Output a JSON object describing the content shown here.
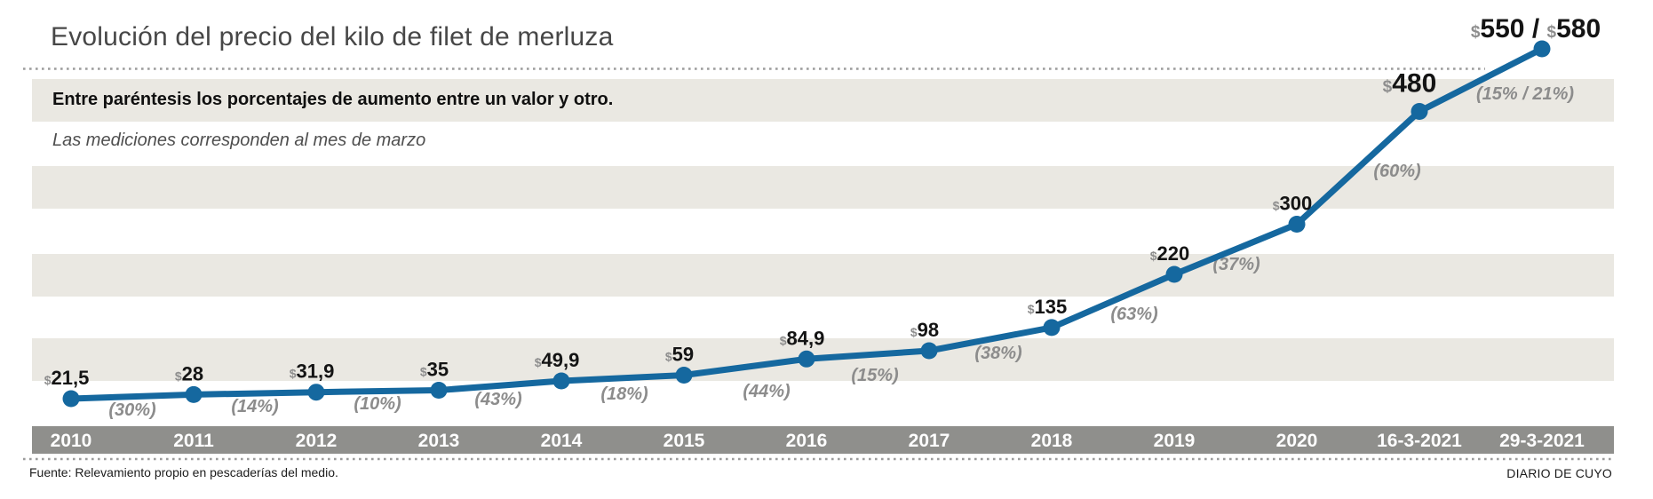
{
  "header": {
    "title": "Evolución del precio del kilo de filet de merluza",
    "note_bold": "Entre paréntesis los porcentajes de aumento entre un valor y otro.",
    "note_italic": "Las mediciones corresponden al mes de marzo"
  },
  "footer": {
    "source": "Fuente: Relevamiento propio en pescaderías del medio.",
    "brand": "DIARIO DE CUYO"
  },
  "chart_data": {
    "type": "line",
    "title": "Evolución del precio del kilo de filet de merluza",
    "notes": [
      "Entre paréntesis los porcentajes de aumento entre un valor y otro.",
      "Las mediciones corresponden al mes de marzo"
    ],
    "categories": [
      "2010",
      "2011",
      "2012",
      "2013",
      "2014",
      "2015",
      "2016",
      "2017",
      "2018",
      "2019",
      "2020",
      "16-3-2021",
      "29-3-2021"
    ],
    "series": [
      {
        "name": "Precio del kilo de filet de merluza",
        "values": [
          21.5,
          28,
          31.9,
          35,
          49.9,
          59,
          84.9,
          98,
          135,
          220,
          300,
          480,
          580
        ]
      }
    ],
    "currency": "$",
    "point_value_labels": [
      "21,5",
      "28",
      "31,9",
      "35",
      "49,9",
      "59",
      "84,9",
      "98",
      "135",
      "220",
      "300",
      "480",
      "550 / 580"
    ],
    "increase_pct_labels": [
      "(30%)",
      "(14%)",
      "(10%)",
      "(43%)",
      "(18%)",
      "(44%)",
      "(15%)",
      "(38%)",
      "(63%)",
      "(37%)",
      "(60%)",
      "(15% / 21%)"
    ],
    "last_point_price_range": [
      550,
      580
    ],
    "emphasized_points": [
      11,
      12
    ],
    "xlabel": "",
    "ylabel": "",
    "ylim": [
      0,
      600
    ],
    "grid": "horizontal-bands",
    "legend": "none",
    "colors": {
      "line": "#15689f",
      "band": "#eae8e2",
      "axis_band": "#8f8f8c",
      "axis_text": "#ffffff",
      "value_text": "#141414",
      "currency_text": "#8e8e8e",
      "pct_text": "#8c8c8c",
      "dotted_rule": "#9c9c9c"
    }
  }
}
